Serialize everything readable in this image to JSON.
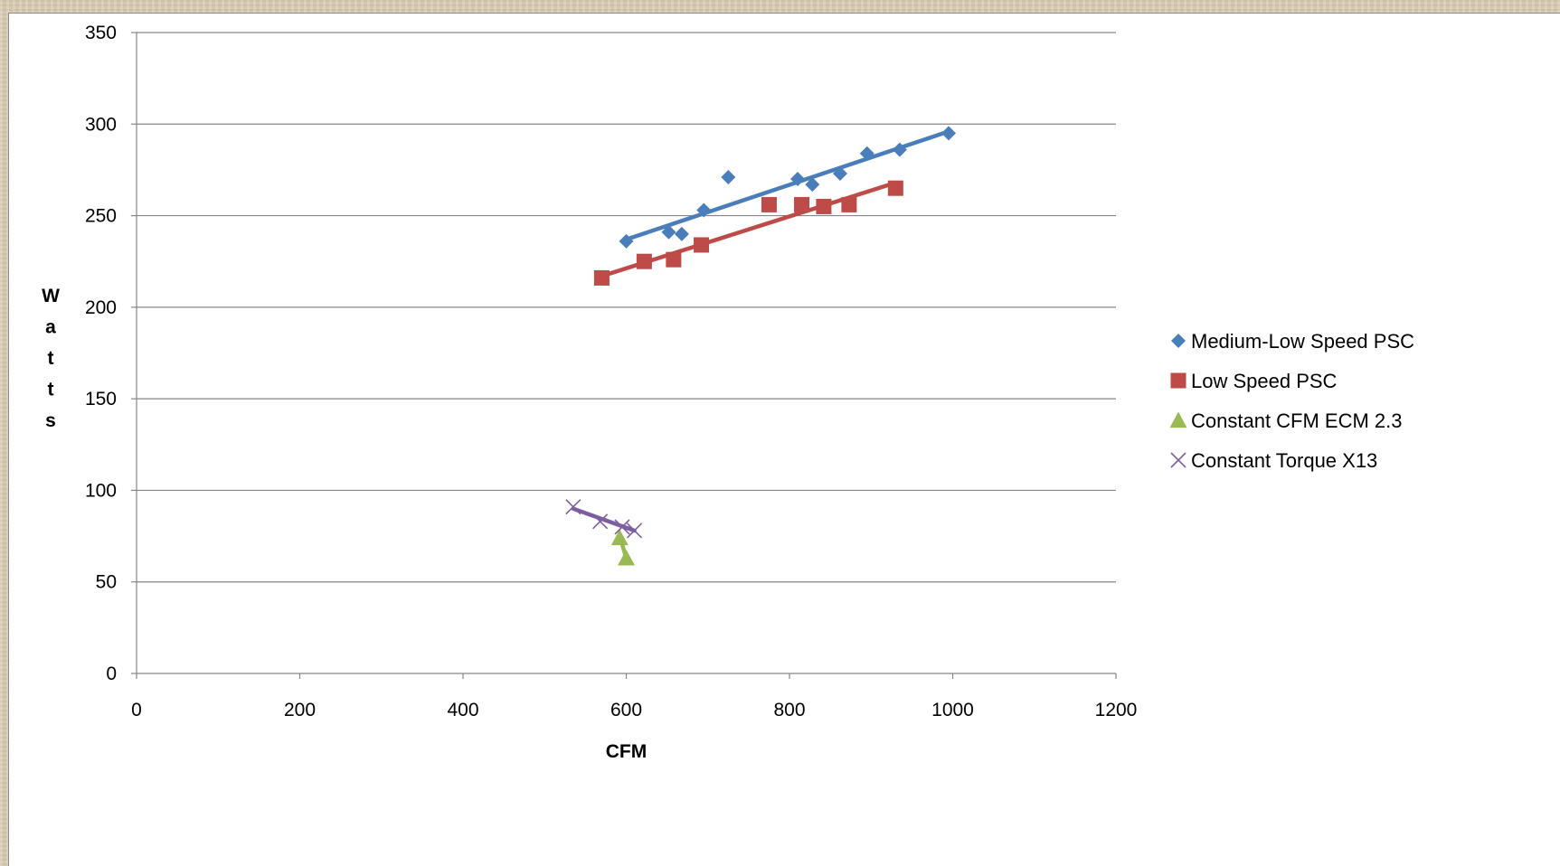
{
  "colors": {
    "medium_low": "#4a7ebb",
    "low": "#be4b48",
    "ecm": "#98b954",
    "x13": "#7d5fa0",
    "grid": "#868686"
  },
  "chart_data": {
    "type": "scatter",
    "title": "",
    "xlabel": "CFM",
    "ylabel": "Watts",
    "xlim": [
      0,
      1200
    ],
    "ylim": [
      0,
      350
    ],
    "xticks": [
      0,
      200,
      400,
      600,
      800,
      1000,
      1200
    ],
    "yticks": [
      0,
      50,
      100,
      150,
      200,
      250,
      300,
      350
    ],
    "grid": "horizontal",
    "legend_position": "right",
    "series": [
      {
        "name": "Medium-Low Speed PSC",
        "marker": "diamond",
        "color_key": "medium_low",
        "x": [
          600,
          652,
          668,
          695,
          725,
          810,
          828,
          862,
          895,
          935,
          995
        ],
        "y": [
          236,
          241,
          240,
          253,
          271,
          270,
          267,
          273,
          284,
          286,
          295
        ],
        "trendline": {
          "x": [
            600,
            995
          ],
          "y": [
            237,
            296
          ]
        }
      },
      {
        "name": "Low Speed PSC",
        "marker": "square",
        "color_key": "low",
        "x": [
          570,
          622,
          658,
          692,
          775,
          815,
          842,
          873,
          930
        ],
        "y": [
          216,
          225,
          226,
          234,
          256,
          256,
          255,
          256,
          265
        ],
        "trendline": {
          "x": [
            570,
            930
          ],
          "y": [
            217,
            268
          ]
        }
      },
      {
        "name": "Constant CFM ECM 2.3",
        "marker": "triangle",
        "color_key": "ecm",
        "x": [
          592,
          600
        ],
        "y": [
          74,
          63
        ],
        "trendline": {
          "x": [
            592,
            600
          ],
          "y": [
            75,
            63
          ]
        }
      },
      {
        "name": "Constant Torque X13",
        "marker": "x",
        "color_key": "x13",
        "x": [
          535,
          568,
          595,
          610
        ],
        "y": [
          91,
          83,
          80,
          78
        ],
        "trendline": {
          "x": [
            535,
            610
          ],
          "y": [
            90,
            78
          ]
        }
      }
    ]
  }
}
